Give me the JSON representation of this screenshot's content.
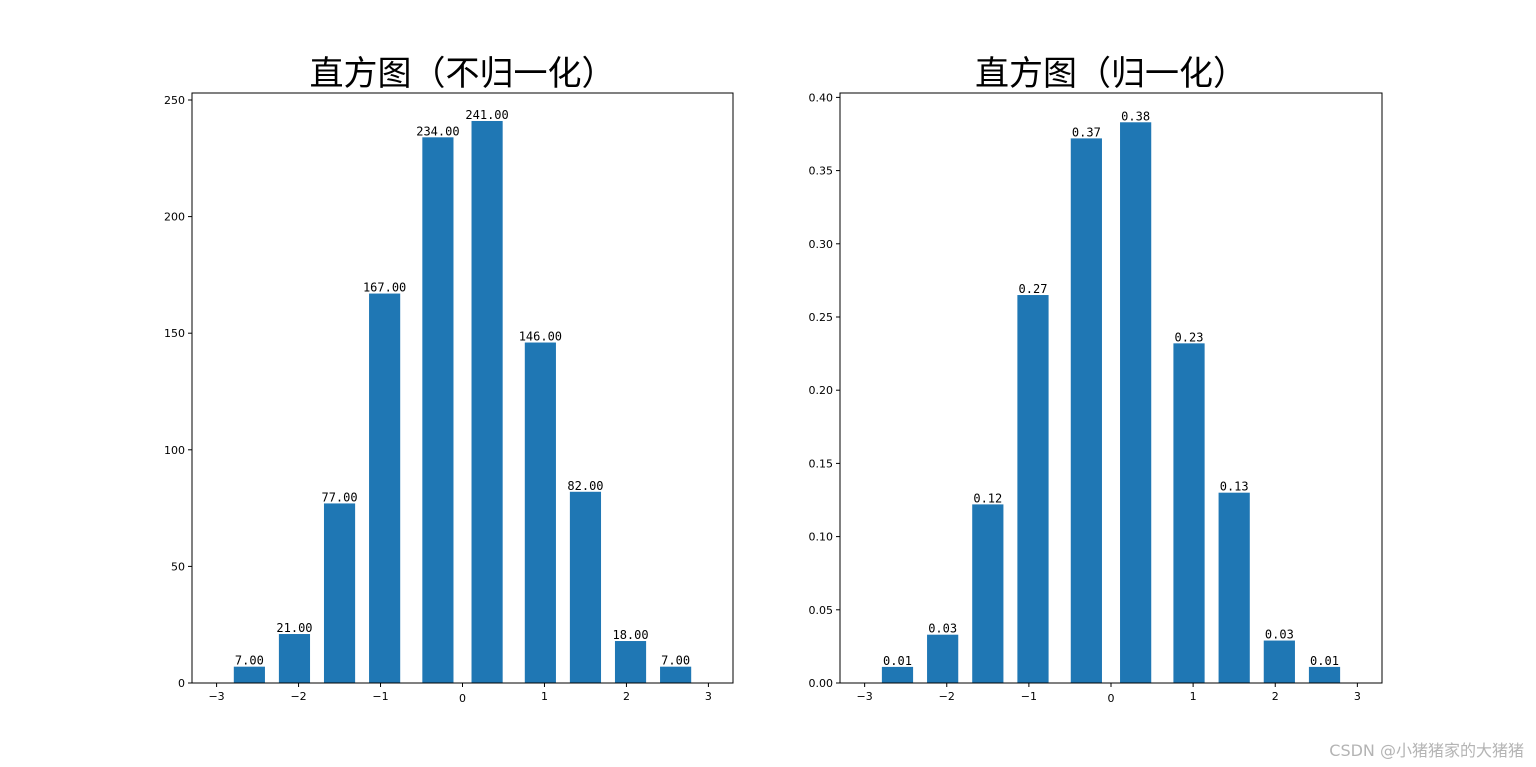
{
  "watermark": "CSDN @小猪猪家的大猪猪",
  "chart_data": [
    {
      "type": "bar",
      "title": "直方图（不归一化）",
      "x": [
        -2.6,
        -2.05,
        -1.5,
        -0.95,
        -0.3,
        0.3,
        0.95,
        1.5,
        2.05,
        2.6
      ],
      "x_ticks": [
        -3,
        -2,
        -1,
        0,
        1,
        2,
        3
      ],
      "x_tick_labels": [
        "−3",
        "−2",
        "−1",
        "0",
        "1",
        "2",
        "3"
      ],
      "values": [
        7,
        21,
        77,
        167,
        234,
        241,
        146,
        82,
        18,
        7
      ],
      "value_labels": [
        "7.00",
        "21.00",
        "77.00",
        "167.00",
        "234.00",
        "241.00",
        "146.00",
        "82.00",
        "18.00",
        "7.00"
      ],
      "y_ticks": [
        0,
        50,
        100,
        150,
        200,
        250
      ],
      "y_tick_labels": [
        "0",
        "50",
        "100",
        "150",
        "200",
        "250"
      ],
      "xlim": [
        -3.3,
        3.3
      ],
      "ylim": [
        0,
        253
      ],
      "bar_color": "#1f77b4",
      "grid": false
    },
    {
      "type": "bar",
      "title": "直方图（归一化）",
      "x": [
        -2.6,
        -2.05,
        -1.5,
        -0.95,
        -0.3,
        0.3,
        0.95,
        1.5,
        2.05,
        2.6
      ],
      "x_ticks": [
        -3,
        -2,
        -1,
        0,
        1,
        2,
        3
      ],
      "x_tick_labels": [
        "−3",
        "−2",
        "−1",
        "0",
        "1",
        "2",
        "3"
      ],
      "values": [
        0.011,
        0.033,
        0.122,
        0.265,
        0.372,
        0.383,
        0.232,
        0.13,
        0.029,
        0.011
      ],
      "value_labels": [
        "0.01",
        "0.03",
        "0.12",
        "0.27",
        "0.37",
        "0.38",
        "0.23",
        "0.13",
        "0.03",
        "0.01"
      ],
      "y_ticks": [
        0,
        0.05,
        0.1,
        0.15,
        0.2,
        0.25,
        0.3,
        0.35,
        0.4
      ],
      "y_tick_labels": [
        "0.00",
        "0.05",
        "0.10",
        "0.15",
        "0.20",
        "0.25",
        "0.30",
        "0.35",
        "0.40"
      ],
      "xlim": [
        -3.3,
        3.3
      ],
      "ylim": [
        0,
        0.403
      ],
      "bar_color": "#1f77b4",
      "grid": false
    }
  ]
}
